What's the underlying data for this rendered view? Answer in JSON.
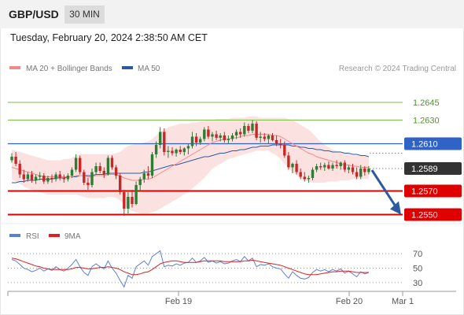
{
  "header": {
    "symbol": "GBP/USD",
    "timeframe": "30 MIN"
  },
  "timestamp": "Tuesday, February 20, 2024 2:38:50 AM CET",
  "legend": [
    {
      "label": "MA 20 + Bollinger Bands",
      "color": "#f08a8a"
    },
    {
      "label": "MA 50",
      "color": "#2b5aa0"
    }
  ],
  "attribution": "Research © 2024 Trading Central",
  "osc_legend": [
    {
      "label": "RSI",
      "color": "#5b7fd6"
    },
    {
      "label": "9MA",
      "color": "#e02020"
    }
  ],
  "colors": {
    "up": "#2e7d32",
    "down": "#c62828",
    "resistance": "#7cbf4a",
    "support": "#e00000",
    "pivot": "#2f63c8",
    "current": "#333333",
    "arrow": "#2b5aa0"
  },
  "chart_data": [
    {
      "type": "candlestick",
      "x_tick_labels": [
        "Feb 19",
        "Feb 20",
        "Mar 1"
      ],
      "ylim": [
        1.2545,
        1.2665
      ],
      "levels": [
        {
          "value": 1.2645,
          "label": "1.2645",
          "kind": "resistance"
        },
        {
          "value": 1.263,
          "label": "1.2630",
          "kind": "resistance"
        },
        {
          "value": 1.261,
          "label": "1.2610",
          "kind": "pivot"
        },
        {
          "value": 1.2589,
          "label": "1.2589",
          "kind": "current"
        },
        {
          "value": 1.257,
          "label": "1.2570",
          "kind": "support"
        },
        {
          "value": 1.255,
          "label": "1.2550",
          "kind": "support"
        }
      ],
      "candles": [
        [
          1.2596,
          1.2602,
          1.2594,
          1.2599
        ],
        [
          1.2599,
          1.2603,
          1.2591,
          1.2593
        ],
        [
          1.2593,
          1.2596,
          1.2581,
          1.2584
        ],
        [
          1.2584,
          1.2588,
          1.2577,
          1.258
        ],
        [
          1.258,
          1.2586,
          1.2578,
          1.2584
        ],
        [
          1.2584,
          1.2587,
          1.2577,
          1.2579
        ],
        [
          1.2579,
          1.2584,
          1.2576,
          1.2582
        ],
        [
          1.2582,
          1.2586,
          1.2579,
          1.2583
        ],
        [
          1.2583,
          1.2585,
          1.2576,
          1.2578
        ],
        [
          1.2578,
          1.2583,
          1.2576,
          1.2581
        ],
        [
          1.2581,
          1.2584,
          1.2577,
          1.258
        ],
        [
          1.258,
          1.2586,
          1.2578,
          1.2584
        ],
        [
          1.2584,
          1.2587,
          1.2579,
          1.2581
        ],
        [
          1.2581,
          1.2584,
          1.2577,
          1.258
        ],
        [
          1.258,
          1.2585,
          1.2578,
          1.2583
        ],
        [
          1.2583,
          1.259,
          1.2581,
          1.2588
        ],
        [
          1.2588,
          1.2601,
          1.2586,
          1.2598
        ],
        [
          1.2598,
          1.26,
          1.2584,
          1.2586
        ],
        [
          1.2586,
          1.2588,
          1.2575,
          1.2577
        ],
        [
          1.2577,
          1.2581,
          1.2571,
          1.2575
        ],
        [
          1.2575,
          1.2589,
          1.2573,
          1.2586
        ],
        [
          1.2586,
          1.2594,
          1.2584,
          1.2591
        ],
        [
          1.2591,
          1.2594,
          1.2585,
          1.2587
        ],
        [
          1.2587,
          1.259,
          1.2581,
          1.2584
        ],
        [
          1.2584,
          1.26,
          1.2583,
          1.2598
        ],
        [
          1.2598,
          1.26,
          1.2588,
          1.259
        ],
        [
          1.259,
          1.2592,
          1.258,
          1.2583
        ],
        [
          1.2583,
          1.2585,
          1.2567,
          1.2569
        ],
        [
          1.2569,
          1.2571,
          1.2549,
          1.2555
        ],
        [
          1.2555,
          1.2569,
          1.2551,
          1.2565
        ],
        [
          1.2565,
          1.2571,
          1.2556,
          1.2559
        ],
        [
          1.2559,
          1.2578,
          1.2558,
          1.2575
        ],
        [
          1.2575,
          1.2582,
          1.257,
          1.258
        ],
        [
          1.258,
          1.2588,
          1.2577,
          1.2585
        ],
        [
          1.2585,
          1.2591,
          1.258,
          1.2583
        ],
        [
          1.2583,
          1.2603,
          1.2581,
          1.2601
        ],
        [
          1.2601,
          1.2612,
          1.2598,
          1.2609
        ],
        [
          1.2609,
          1.2624,
          1.2606,
          1.262
        ],
        [
          1.262,
          1.2623,
          1.26,
          1.2603
        ],
        [
          1.2603,
          1.2608,
          1.2598,
          1.2604
        ],
        [
          1.2604,
          1.2607,
          1.26,
          1.2602
        ],
        [
          1.2602,
          1.2606,
          1.2599,
          1.2605
        ],
        [
          1.2605,
          1.2608,
          1.2601,
          1.2603
        ],
        [
          1.2603,
          1.2607,
          1.26,
          1.2606
        ],
        [
          1.2606,
          1.261,
          1.2601,
          1.2608
        ],
        [
          1.2608,
          1.262,
          1.2606,
          1.2616
        ],
        [
          1.2616,
          1.2619,
          1.2608,
          1.2611
        ],
        [
          1.2611,
          1.2616,
          1.2609,
          1.2614
        ],
        [
          1.2614,
          1.2624,
          1.2612,
          1.2622
        ],
        [
          1.2622,
          1.2625,
          1.2614,
          1.2616
        ],
        [
          1.2616,
          1.262,
          1.2612,
          1.2618
        ],
        [
          1.2618,
          1.2621,
          1.2613,
          1.2615
        ],
        [
          1.2615,
          1.2619,
          1.2612,
          1.2617
        ],
        [
          1.2617,
          1.262,
          1.2611,
          1.2613
        ],
        [
          1.2613,
          1.2617,
          1.261,
          1.2614
        ],
        [
          1.2614,
          1.2619,
          1.2612,
          1.2617
        ],
        [
          1.2617,
          1.2622,
          1.2614,
          1.262
        ],
        [
          1.262,
          1.2623,
          1.2615,
          1.2618
        ],
        [
          1.2618,
          1.2628,
          1.2616,
          1.2625
        ],
        [
          1.2625,
          1.2627,
          1.2619,
          1.2621
        ],
        [
          1.2621,
          1.263,
          1.2619,
          1.2627
        ],
        [
          1.2627,
          1.2629,
          1.2613,
          1.2615
        ],
        [
          1.2615,
          1.262,
          1.2611,
          1.2616
        ],
        [
          1.2616,
          1.2619,
          1.2612,
          1.2614
        ],
        [
          1.2614,
          1.2618,
          1.261,
          1.2617
        ],
        [
          1.2617,
          1.2619,
          1.2612,
          1.2613
        ],
        [
          1.2613,
          1.2617,
          1.2608,
          1.261
        ],
        [
          1.261,
          1.2614,
          1.2606,
          1.2609
        ],
        [
          1.2609,
          1.2612,
          1.2598,
          1.26
        ],
        [
          1.26,
          1.2603,
          1.2588,
          1.259
        ],
        [
          1.259,
          1.2594,
          1.2585,
          1.2593
        ],
        [
          1.2593,
          1.2596,
          1.2584,
          1.2586
        ],
        [
          1.2586,
          1.2589,
          1.258,
          1.2582
        ],
        [
          1.2582,
          1.2586,
          1.2578,
          1.258
        ],
        [
          1.258,
          1.2583,
          1.2577,
          1.2581
        ],
        [
          1.2581,
          1.259,
          1.2579,
          1.2588
        ],
        [
          1.2588,
          1.2593,
          1.2586,
          1.2591
        ],
        [
          1.2591,
          1.2594,
          1.2588,
          1.259
        ],
        [
          1.259,
          1.2594,
          1.2587,
          1.2592
        ],
        [
          1.2592,
          1.2595,
          1.2588,
          1.2589
        ],
        [
          1.2589,
          1.2594,
          1.2587,
          1.2592
        ],
        [
          1.2592,
          1.2596,
          1.2589,
          1.2591
        ],
        [
          1.2591,
          1.2595,
          1.2588,
          1.2594
        ],
        [
          1.2594,
          1.2596,
          1.2586,
          1.2588
        ],
        [
          1.2588,
          1.2592,
          1.2585,
          1.259
        ],
        [
          1.259,
          1.2593,
          1.2584,
          1.2586
        ],
        [
          1.2586,
          1.259,
          1.258,
          1.2582
        ],
        [
          1.2582,
          1.2592,
          1.258,
          1.2589
        ],
        [
          1.2589,
          1.2591,
          1.2583,
          1.2586
        ],
        [
          1.2586,
          1.2591,
          1.2584,
          1.2589
        ]
      ],
      "ma20": [
        1.259,
        1.2589,
        1.2588,
        1.2587,
        1.2586,
        1.2585,
        1.2584,
        1.2583,
        1.2582,
        1.2582,
        1.2582,
        1.2582,
        1.2582,
        1.2582,
        1.2582,
        1.2582,
        1.2583,
        1.2583,
        1.2583,
        1.2582,
        1.2582,
        1.2583,
        1.2583,
        1.2583,
        1.2584,
        1.2584,
        1.2584,
        1.2583,
        1.2581,
        1.258,
        1.2579,
        1.2579,
        1.2579,
        1.258,
        1.258,
        1.2581,
        1.2583,
        1.2585,
        1.2587,
        1.2589,
        1.2591,
        1.2593,
        1.2595,
        1.2597,
        1.2599,
        1.2601,
        1.2603,
        1.2605,
        1.2607,
        1.2609,
        1.2611,
        1.2612,
        1.2613,
        1.2614,
        1.2614,
        1.2615,
        1.2615,
        1.2616,
        1.2617,
        1.2617,
        1.2618,
        1.2618,
        1.2618,
        1.2618,
        1.2618,
        1.2617,
        1.2617,
        1.2616,
        1.2614,
        1.2612,
        1.261,
        1.2608,
        1.2606,
        1.2604,
        1.2602,
        1.2601,
        1.2599,
        1.2598,
        1.2597,
        1.2596,
        1.2595,
        1.2594,
        1.2593,
        1.2592,
        1.2592,
        1.2591,
        1.2591,
        1.259,
        1.259,
        1.259
      ],
      "ma50": [
        1.2577,
        1.2577,
        1.2578,
        1.2578,
        1.2579,
        1.2579,
        1.2579,
        1.258,
        1.258,
        1.258,
        1.258,
        1.2581,
        1.2581,
        1.2581,
        1.2582,
        1.2582,
        1.2582,
        1.2583,
        1.2583,
        1.2583,
        1.2583,
        1.2584,
        1.2584,
        1.2584,
        1.2585,
        1.2585,
        1.2585,
        1.2585,
        1.2585,
        1.2585,
        1.2585,
        1.2585,
        1.2585,
        1.2586,
        1.2586,
        1.2587,
        1.2588,
        1.2589,
        1.259,
        1.2591,
        1.2592,
        1.2592,
        1.2593,
        1.2594,
        1.2595,
        1.2596,
        1.2597,
        1.2598,
        1.2599,
        1.2599,
        1.26,
        1.2601,
        1.2602,
        1.2602,
        1.2603,
        1.2604,
        1.2604,
        1.2605,
        1.2605,
        1.2606,
        1.2607,
        1.2607,
        1.2608,
        1.2608,
        1.2608,
        1.2609,
        1.2609,
        1.2609,
        1.2609,
        1.2609,
        1.2608,
        1.2608,
        1.2607,
        1.2607,
        1.2606,
        1.2606,
        1.2605,
        1.2605,
        1.2604,
        1.2604,
        1.2603,
        1.2603,
        1.2603,
        1.2602,
        1.2602,
        1.2601,
        1.2601,
        1.26,
        1.26,
        1.2599
      ],
      "bb_upper": [
        1.2605,
        1.2604,
        1.2603,
        1.2602,
        1.2601,
        1.26,
        1.2599,
        1.2598,
        1.2597,
        1.2596,
        1.2596,
        1.2596,
        1.2596,
        1.2597,
        1.2597,
        1.2598,
        1.26,
        1.2601,
        1.2601,
        1.2601,
        1.2601,
        1.2601,
        1.2601,
        1.2601,
        1.2601,
        1.2601,
        1.2602,
        1.2603,
        1.2606,
        1.2608,
        1.2609,
        1.261,
        1.261,
        1.2611,
        1.2612,
        1.2614,
        1.2617,
        1.262,
        1.2622,
        1.2624,
        1.2625,
        1.2626,
        1.2627,
        1.2627,
        1.2627,
        1.2628,
        1.2628,
        1.2629,
        1.2629,
        1.263,
        1.263,
        1.2631,
        1.2631,
        1.2631,
        1.2631,
        1.2632,
        1.2632,
        1.2632,
        1.2632,
        1.2633,
        1.2633,
        1.2633,
        1.2632,
        1.2632,
        1.2632,
        1.2632,
        1.2632,
        1.2632,
        1.2632,
        1.2631,
        1.263,
        1.2628,
        1.2626,
        1.2624,
        1.2622,
        1.2619,
        1.2615,
        1.2612,
        1.2609,
        1.2607,
        1.2605,
        1.2604,
        1.2603,
        1.2602,
        1.2601,
        1.26,
        1.26,
        1.26,
        1.26,
        1.26
      ],
      "bb_lower": [
        1.258,
        1.2578,
        1.2576,
        1.2574,
        1.2572,
        1.2571,
        1.257,
        1.2569,
        1.2568,
        1.2567,
        1.2567,
        1.2567,
        1.2567,
        1.2567,
        1.2567,
        1.2567,
        1.2567,
        1.2566,
        1.2565,
        1.2564,
        1.2564,
        1.2564,
        1.2564,
        1.2564,
        1.2565,
        1.2565,
        1.2564,
        1.2562,
        1.2558,
        1.2555,
        1.2553,
        1.2552,
        1.2551,
        1.2551,
        1.2551,
        1.2552,
        1.2553,
        1.2555,
        1.2557,
        1.2559,
        1.2561,
        1.2563,
        1.2565,
        1.2567,
        1.2569,
        1.2572,
        1.2575,
        1.2578,
        1.2581,
        1.2585,
        1.2589,
        1.2591,
        1.2593,
        1.2595,
        1.2597,
        1.2598,
        1.2599,
        1.26,
        1.2601,
        1.2602,
        1.2603,
        1.2604,
        1.2604,
        1.2604,
        1.2604,
        1.2602,
        1.26,
        1.2597,
        1.2593,
        1.2589,
        1.2586,
        1.2583,
        1.2581,
        1.2579,
        1.2578,
        1.2577,
        1.2577,
        1.2577,
        1.2577,
        1.2578,
        1.2578,
        1.2578,
        1.2579,
        1.2579,
        1.2579,
        1.258,
        1.258,
        1.258,
        1.258,
        1.258
      ],
      "forecast_arrow": {
        "from": 1.2589,
        "to": 1.255
      }
    },
    {
      "type": "line",
      "name": "RSI panel",
      "ylim": [
        20,
        80
      ],
      "y_ticks": [
        70,
        50,
        30
      ],
      "series": [
        {
          "name": "RSI",
          "values": [
            62,
            60,
            55,
            50,
            48,
            45,
            47,
            50,
            46,
            49,
            47,
            52,
            48,
            46,
            50,
            55,
            62,
            52,
            44,
            40,
            52,
            56,
            52,
            49,
            60,
            50,
            43,
            33,
            24,
            40,
            36,
            52,
            56,
            60,
            54,
            66,
            70,
            74,
            52,
            54,
            53,
            56,
            54,
            57,
            58,
            64,
            58,
            60,
            65,
            58,
            60,
            57,
            59,
            56,
            57,
            60,
            62,
            59,
            66,
            60,
            64,
            52,
            55,
            54,
            56,
            52,
            50,
            49,
            42,
            36,
            45,
            40,
            36,
            35,
            37,
            44,
            48,
            46,
            48,
            45,
            48,
            46,
            49,
            43,
            46,
            42,
            38,
            45,
            42,
            44
          ]
        },
        {
          "name": "9MA",
          "values": [
            64,
            63,
            61,
            59,
            57,
            55,
            53,
            52,
            50,
            49,
            48,
            48,
            48,
            48,
            48,
            49,
            51,
            51,
            50,
            49,
            49,
            50,
            51,
            51,
            52,
            51,
            50,
            48,
            45,
            43,
            41,
            41,
            42,
            44,
            45,
            48,
            52,
            56,
            58,
            59,
            60,
            60,
            59,
            58,
            58,
            58,
            58,
            59,
            60,
            60,
            60,
            60,
            60,
            59,
            59,
            59,
            59,
            59,
            60,
            60,
            61,
            60,
            59,
            58,
            57,
            56,
            55,
            54,
            52,
            50,
            48,
            46,
            44,
            42,
            41,
            41,
            41,
            42,
            43,
            44,
            45,
            45,
            46,
            46,
            46,
            45,
            44,
            44,
            44,
            44
          ]
        }
      ]
    }
  ]
}
